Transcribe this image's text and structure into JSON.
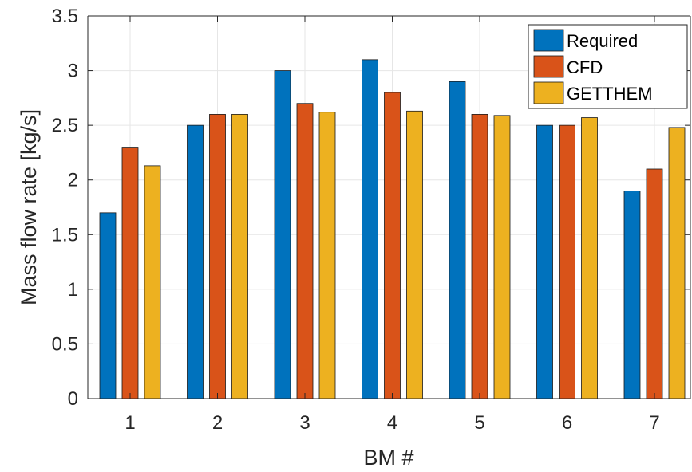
{
  "chart_data": {
    "type": "bar",
    "title": "",
    "xlabel": "BM #",
    "ylabel": "Mass flow rate [kg/s]",
    "categories": [
      "1",
      "2",
      "3",
      "4",
      "5",
      "6",
      "7"
    ],
    "ylim": [
      0,
      3.5
    ],
    "yticks": [
      "0",
      "0.5",
      "1",
      "1.5",
      "2",
      "2.5",
      "3",
      "3.5"
    ],
    "grid": true,
    "legend_position": "top-right",
    "series": [
      {
        "name": "Required",
        "color": "#0072BD",
        "values": [
          1.7,
          2.5,
          3.0,
          3.1,
          2.9,
          2.5,
          1.9
        ]
      },
      {
        "name": "CFD",
        "color": "#D95319",
        "values": [
          2.3,
          2.6,
          2.7,
          2.8,
          2.6,
          2.5,
          2.1
        ]
      },
      {
        "name": "GETTHEM",
        "color": "#EDB120",
        "values": [
          2.13,
          2.6,
          2.62,
          2.63,
          2.59,
          2.57,
          2.48
        ]
      }
    ]
  }
}
